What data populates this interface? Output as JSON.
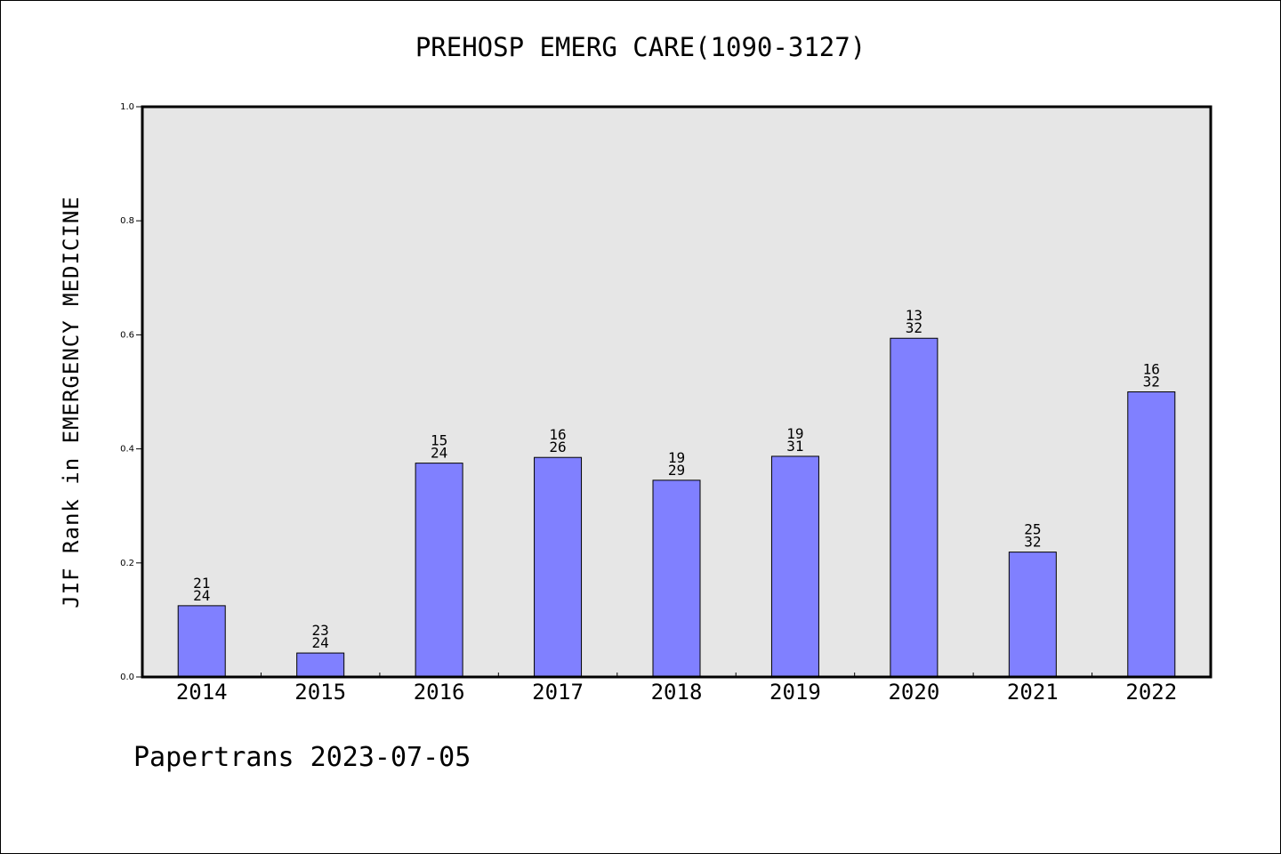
{
  "chart_data": {
    "type": "bar",
    "title": "PREHOSP EMERG CARE(1090-3127)",
    "ylabel": "JIF Rank in EMERGENCY MEDICINE",
    "xlabel": "",
    "categories": [
      "2014",
      "2015",
      "2016",
      "2017",
      "2018",
      "2019",
      "2020",
      "2021",
      "2022"
    ],
    "values": [
      0.125,
      0.042,
      0.375,
      0.385,
      0.345,
      0.387,
      0.594,
      0.219,
      0.5
    ],
    "ranks": [
      "21",
      "23",
      "15",
      "16",
      "19",
      "19",
      "13",
      "25",
      "16"
    ],
    "totals": [
      "24",
      "24",
      "24",
      "26",
      "29",
      "31",
      "32",
      "32",
      "32"
    ],
    "ylim": [
      0,
      1.0
    ],
    "yticks": [
      "0.0",
      "0.2",
      "0.4",
      "0.6",
      "0.8",
      "1.0"
    ],
    "grid": false,
    "colors": {
      "bar_fill": "#8080ff",
      "plot_background": "#e6e6e6"
    }
  },
  "footer": "Papertrans 2023-07-05"
}
